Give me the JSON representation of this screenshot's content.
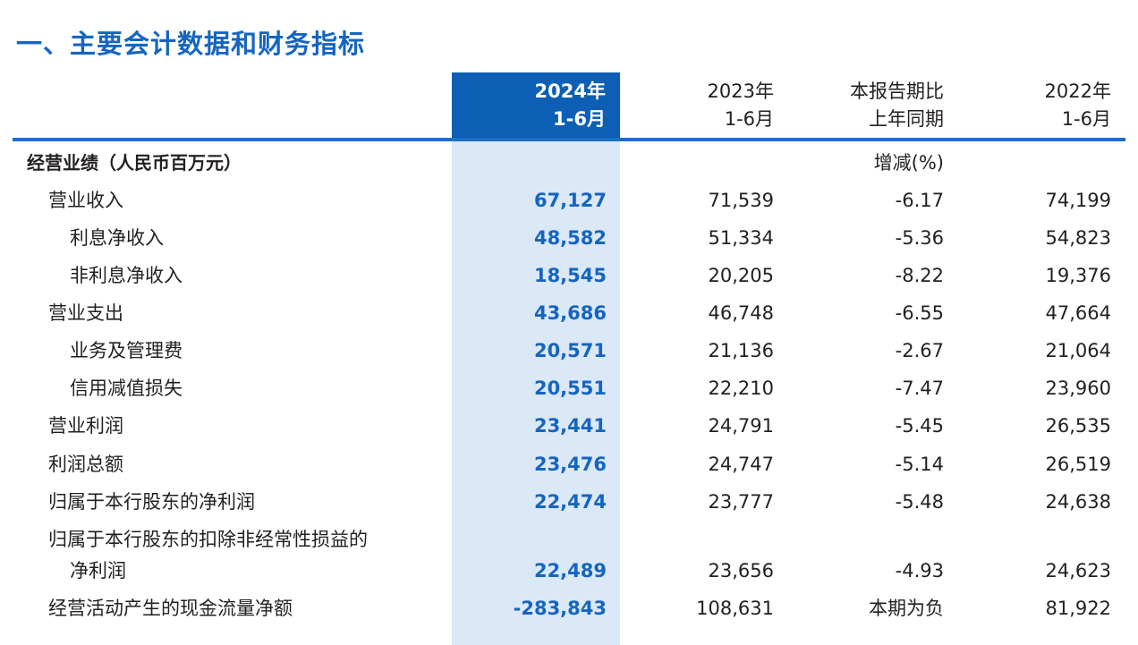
{
  "title": "一、主要会计数据和财务指标",
  "columns": [
    {
      "line1": "2024年",
      "line2": "1-6月"
    },
    {
      "line1": "2023年",
      "line2": "1-6月"
    },
    {
      "line1": "本报告期比",
      "line2": "上年同期"
    },
    {
      "line1": "2022年",
      "line2": "1-6月"
    }
  ],
  "section": {
    "label": "经营业绩（人民币百万元）",
    "change_unit": "增减(%)"
  },
  "rows": [
    {
      "label": "营业收入",
      "v2024": "67,127",
      "v2023": "71,539",
      "change": "-6.17",
      "v2022": "74,199"
    },
    {
      "label": "利息净收入",
      "v2024": "48,582",
      "v2023": "51,334",
      "change": "-5.36",
      "v2022": "54,823"
    },
    {
      "label": "非利息净收入",
      "v2024": "18,545",
      "v2023": "20,205",
      "change": "-8.22",
      "v2022": "19,376"
    },
    {
      "label": "营业支出",
      "v2024": "43,686",
      "v2023": "46,748",
      "change": "-6.55",
      "v2022": "47,664"
    },
    {
      "label": "业务及管理费",
      "v2024": "20,571",
      "v2023": "21,136",
      "change": "-2.67",
      "v2022": "21,064"
    },
    {
      "label": "信用减值损失",
      "v2024": "20,551",
      "v2023": "22,210",
      "change": "-7.47",
      "v2022": "23,960"
    },
    {
      "label": "营业利润",
      "v2024": "23,441",
      "v2023": "24,791",
      "change": "-5.45",
      "v2022": "26,535"
    },
    {
      "label": "利润总额",
      "v2024": "23,476",
      "v2023": "24,747",
      "change": "-5.14",
      "v2022": "26,519"
    },
    {
      "label": "归属于本行股东的净利润",
      "v2024": "22,474",
      "v2023": "23,777",
      "change": "-5.48",
      "v2022": "24,638"
    },
    {
      "label": "归属于本行股东的扣除非经常性损益的",
      "label2": "净利润",
      "v2024": "22,489",
      "v2023": "23,656",
      "change": "-4.93",
      "v2022": "24,623"
    },
    {
      "label": "经营活动产生的现金流量净额",
      "v2024": "-283,843",
      "v2023": "108,631",
      "change": "本期为负",
      "v2022": "81,922"
    }
  ]
}
